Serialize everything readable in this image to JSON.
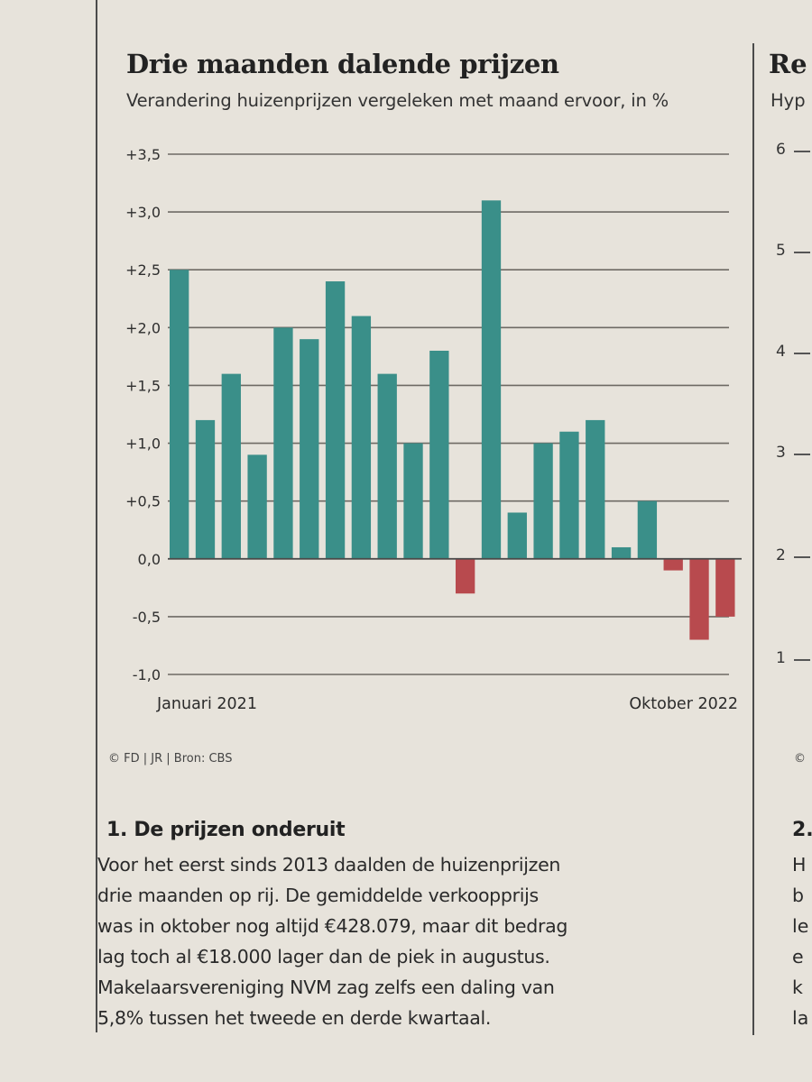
{
  "chart_data": {
    "type": "bar",
    "title": "Drie maanden dalende prijzen",
    "subtitle": "Verandering huizenprijzen vergeleken met maand ervoor, in %",
    "xlabel_start": "Januari 2021",
    "xlabel_end": "Oktober 2022",
    "ylim": [
      -1.0,
      3.5
    ],
    "yticks": [
      {
        "value": 3.5,
        "label": "+3,5"
      },
      {
        "value": 3.0,
        "label": "+3,0"
      },
      {
        "value": 2.5,
        "label": "+2,5"
      },
      {
        "value": 2.0,
        "label": "+2,0"
      },
      {
        "value": 1.5,
        "label": "+1,5"
      },
      {
        "value": 1.0,
        "label": "+1,0"
      },
      {
        "value": 0.5,
        "label": "+0,5"
      },
      {
        "value": 0.0,
        "label": "0,0"
      },
      {
        "value": -0.5,
        "label": "-0,5"
      },
      {
        "value": -1.0,
        "label": "-1,0"
      }
    ],
    "values": [
      2.5,
      1.2,
      1.6,
      0.9,
      2.0,
      1.9,
      2.4,
      2.1,
      1.6,
      1.0,
      1.8,
      -0.3,
      3.1,
      0.4,
      1.0,
      1.1,
      1.2,
      0.1,
      0.5,
      -0.1,
      -0.7,
      -0.5
    ],
    "colors": {
      "positive": "#3a8f89",
      "negative": "#b84a4e"
    },
    "grid": true
  },
  "source": "© FD | JR | Bron: CBS",
  "article": {
    "heading": "1. De prijzen onderuit",
    "lines": [
      "Voor het eerst sinds 2013 daalden de huizenprijzen",
      "drie maanden op rij. De gemiddelde verkoopprijs",
      "was in oktober nog altijd €428.079, maar dit bedrag",
      "lag toch al €18.000 lager dan de piek in augustus.",
      "Makelaarsvereniging NVM zag zelfs een daling van",
      "5,8% tussen het tweede en derde kwartaal."
    ]
  },
  "neighbor": {
    "title": "Re",
    "subtitle": "Hyp",
    "ticks": [
      "6",
      "5",
      "4",
      "3",
      "2",
      "1"
    ],
    "source": "©",
    "heading": "2.",
    "lines": [
      "H",
      "b",
      "le",
      "e",
      "k",
      "la"
    ]
  }
}
